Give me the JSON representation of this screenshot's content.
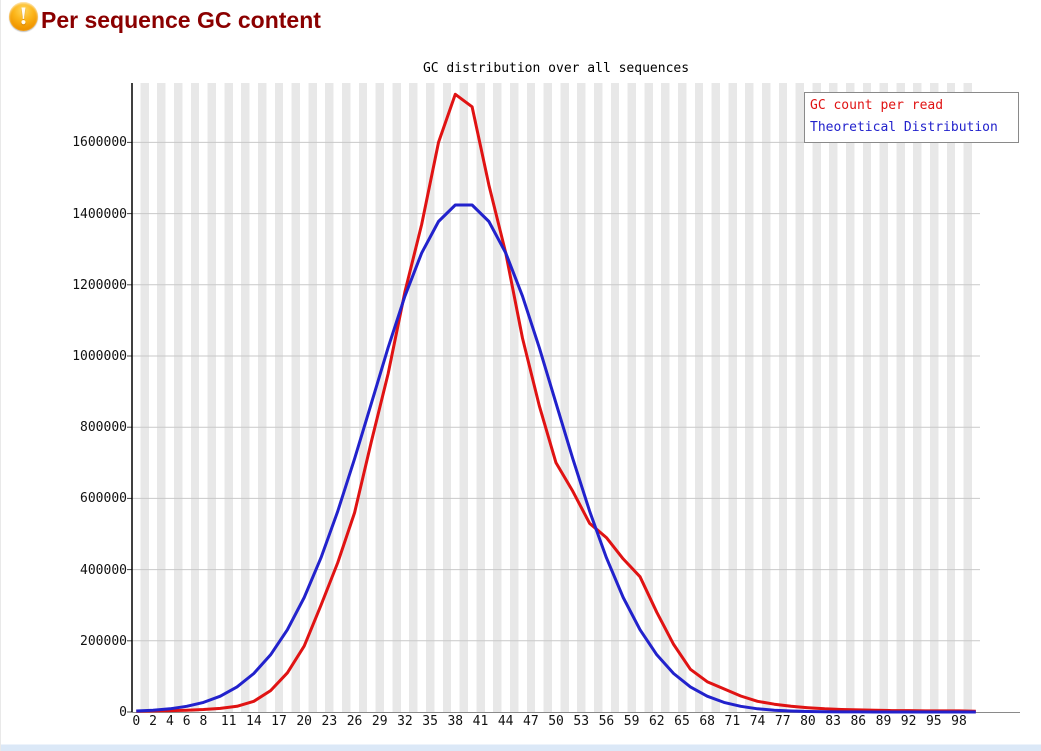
{
  "header": {
    "title": "Per sequence GC content",
    "status": "warning",
    "icon": "warning-icon",
    "icon_glyph": "!",
    "title_color": "#8b0000",
    "icon_color": "#f09600"
  },
  "chart_data": {
    "type": "line",
    "title": "GC distribution over all sequences",
    "xlabel": "",
    "ylabel": "",
    "xlim": [
      0,
      101
    ],
    "ylim": [
      0,
      1760000
    ],
    "grid": "horizontal",
    "plot_background": "striped",
    "stripe_color": "#e8e8e8",
    "grid_color": "#c9c9c9",
    "legend_position": "top-right",
    "x_ticks": [
      0,
      2,
      4,
      6,
      8,
      11,
      14,
      17,
      20,
      23,
      26,
      29,
      32,
      35,
      38,
      41,
      44,
      47,
      50,
      53,
      56,
      59,
      62,
      65,
      68,
      71,
      74,
      77,
      80,
      83,
      86,
      89,
      92,
      95,
      98
    ],
    "y_ticks": [
      0,
      200000,
      400000,
      600000,
      800000,
      1000000,
      1200000,
      1400000,
      1600000
    ],
    "x": [
      0,
      2,
      4,
      6,
      8,
      10,
      12,
      14,
      16,
      18,
      20,
      22,
      24,
      26,
      28,
      30,
      32,
      34,
      36,
      38,
      40,
      42,
      44,
      46,
      48,
      50,
      52,
      54,
      56,
      58,
      60,
      62,
      64,
      66,
      68,
      70,
      72,
      74,
      76,
      78,
      80,
      82,
      84,
      86,
      88,
      90,
      92,
      94,
      96,
      98,
      100
    ],
    "series": [
      {
        "name": "GC count per read",
        "color": "#e01313",
        "values": [
          2000,
          3000,
          4000,
          5000,
          7000,
          10000,
          16000,
          30000,
          60000,
          110000,
          185000,
          300000,
          420000,
          560000,
          760000,
          950000,
          1180000,
          1370000,
          1600000,
          1735000,
          1700000,
          1480000,
          1290000,
          1050000,
          860000,
          700000,
          620000,
          530000,
          490000,
          430000,
          380000,
          280000,
          190000,
          120000,
          85000,
          65000,
          45000,
          30000,
          22000,
          16000,
          12000,
          9000,
          7000,
          6000,
          5000,
          4000,
          4000,
          3000,
          3000,
          3000,
          2000
        ]
      },
      {
        "name": "Theoretical Distribution",
        "color": "#2222cc",
        "values": [
          2700,
          5000,
          9000,
          15900,
          27000,
          44300,
          70400,
          108100,
          160700,
          231200,
          321700,
          433300,
          564300,
          711400,
          867300,
          1023300,
          1167900,
          1289600,
          1377800,
          1424100,
          1424100,
          1377800,
          1289600,
          1167900,
          1023300,
          867300,
          711400,
          564300,
          433300,
          321700,
          231200,
          160700,
          108100,
          70400,
          44300,
          27000,
          15900,
          9000,
          5000,
          2700,
          1400,
          700,
          300,
          150,
          70,
          30,
          20,
          10,
          5,
          3,
          2
        ]
      }
    ]
  }
}
